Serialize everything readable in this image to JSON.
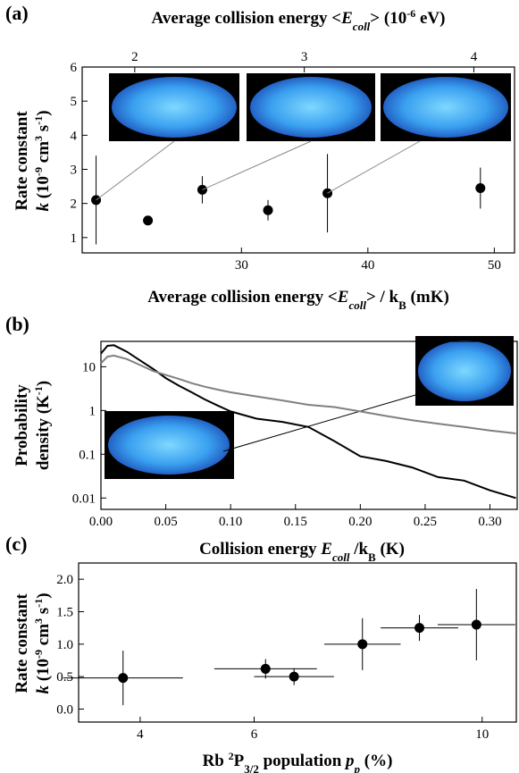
{
  "chart_data": [
    {
      "type": "scatter",
      "panel_label": "(a)",
      "x2label": [
        "Average collision energy <",
        "E",
        "coll",
        "> (10",
        "-6",
        " eV)"
      ],
      "xlabel": [
        "Average collision energy <",
        "E",
        "coll",
        "> / k",
        "B",
        " (mK)"
      ],
      "ylabel": [
        "Rate constant",
        "k",
        " (10",
        "-9",
        " cm",
        "3",
        " s",
        "-1",
        ")"
      ],
      "x": [
        18.5,
        22.6,
        26.9,
        32.1,
        36.8,
        48.9
      ],
      "values": [
        2.1,
        1.5,
        2.4,
        1.8,
        2.3,
        2.45
      ],
      "errors": [
        1.3,
        null,
        0.4,
        0.3,
        1.15,
        0.6
      ],
      "color": "#000000",
      "xlim": [
        17.4,
        51.6
      ],
      "xticks": [
        30,
        40,
        50
      ],
      "x2lim": [
        1.69,
        4.24
      ],
      "x2ticks": [
        2,
        3,
        4
      ],
      "ylim": [
        0.55,
        6
      ],
      "yticks": [
        1,
        2,
        3,
        4,
        5,
        6
      ]
    },
    {
      "type": "line",
      "panel_label": "(b)",
      "xlabel": [
        "Collision energy ",
        "E",
        "coll",
        " /k",
        "B",
        " (K)"
      ],
      "ylabel": [
        "Probability",
        "density (K",
        "-1",
        ")"
      ],
      "x": [
        0,
        0.005,
        0.01,
        0.02,
        0.03,
        0.04,
        0.05,
        0.06,
        0.07,
        0.08,
        0.09,
        0.1,
        0.12,
        0.14,
        0.16,
        0.18,
        0.2,
        0.22,
        0.24,
        0.26,
        0.28,
        0.3,
        0.32
      ],
      "series": [
        {
          "color": "#000000",
          "values": [
            20,
            30,
            31,
            22,
            14,
            9,
            5.5,
            3.7,
            2.6,
            1.8,
            1.3,
            0.95,
            0.65,
            0.55,
            0.42,
            0.2,
            0.09,
            0.07,
            0.05,
            0.03,
            0.025,
            0.015,
            0.01
          ]
        },
        {
          "color": "#808080",
          "values": [
            12,
            17,
            18,
            15,
            11,
            8,
            6.5,
            5.3,
            4.2,
            3.5,
            3,
            2.6,
            2.1,
            1.7,
            1.35,
            1.2,
            0.95,
            0.75,
            0.6,
            0.5,
            0.42,
            0.35,
            0.3
          ]
        }
      ],
      "log_y": true,
      "xlim": [
        0,
        0.321
      ],
      "xticks": [
        {
          "value": 0,
          "label": "0.00"
        },
        0.05,
        {
          "value": 0.1,
          "label": "0.10"
        },
        0.15,
        {
          "value": 0.2,
          "label": "0.20"
        },
        0.25,
        {
          "value": 0.3,
          "label": "0.30"
        }
      ],
      "ylim": [
        0.0055,
        38
      ],
      "yticks": [
        0.01,
        0.1,
        1,
        10
      ]
    },
    {
      "type": "scatter",
      "panel_label": "(c)",
      "xlabel": [
        "Rb ",
        "2",
        "P",
        "3/2",
        " population ",
        "p",
        "p",
        " (%)"
      ],
      "ylabel": [
        "Rate constant",
        "k",
        " (10",
        "-9",
        " cm",
        "3",
        " s",
        "-1",
        ")"
      ],
      "x": [
        3.7,
        6.2,
        6.7,
        7.9,
        8.9,
        9.9
      ],
      "x_errors": [
        1.05,
        0.9,
        0.7,
        0.67,
        0.68,
        0.68
      ],
      "values": [
        0.48,
        0.62,
        0.5,
        1.0,
        1.25,
        1.3
      ],
      "errors": [
        0.42,
        0.15,
        0.13,
        0.4,
        0.2,
        0.55
      ],
      "color": "#000000",
      "xlim": [
        2.92,
        10.6
      ],
      "xticks": [
        4,
        6,
        10
      ],
      "ylim": [
        -0.2,
        2.25
      ],
      "yticks": [
        {
          "value": 0,
          "label": "0.0"
        },
        {
          "value": 0.5,
          "label": "0.5"
        },
        {
          "value": 1,
          "label": "1.0"
        },
        {
          "value": 1.5,
          "label": "1.5"
        },
        {
          "value": 2,
          "label": "2.0"
        }
      ]
    }
  ]
}
